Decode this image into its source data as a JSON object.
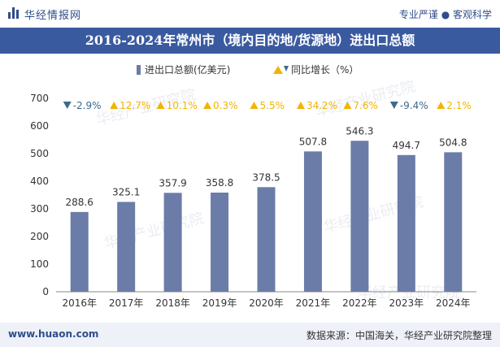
{
  "header": {
    "brand": "华经情报网",
    "tagline": "专业严谨 ● 客观科学"
  },
  "footer": {
    "site": "www.huaon.com",
    "source": "数据来源：中国海关，华经产业研究院整理"
  },
  "watermark": "华经产业研究院",
  "colors": {
    "bar": "#6b7ca8",
    "up": "#f2b400",
    "down": "#3d6a8c",
    "title_bg": "#3a5aa0"
  },
  "chart_data": {
    "type": "bar",
    "title": "2016-2024年常州市（境内目的地/货源地）进出口总额",
    "categories": [
      "2016年",
      "2017年",
      "2018年",
      "2019年",
      "2020年",
      "2021年",
      "2022年",
      "2023年",
      "2024年"
    ],
    "series": [
      {
        "name": "进出口总额(亿美元)",
        "values": [
          288.6,
          325.1,
          357.9,
          358.8,
          378.5,
          507.8,
          546.3,
          494.7,
          504.8
        ]
      },
      {
        "name": "同比增长（%）",
        "values": [
          -2.9,
          12.7,
          10.1,
          0.3,
          5.5,
          34.2,
          7.6,
          -9.4,
          2.1
        ]
      }
    ],
    "value_labels": [
      "288.6",
      "325.1",
      "357.9",
      "358.8",
      "378.5",
      "507.8",
      "546.3",
      "494.7",
      "504.8"
    ],
    "growth_labels": [
      "-2.9%",
      "12.7%",
      "10.1%",
      "0.3%",
      "5.5%",
      "34.2%",
      "7.6%",
      "-9.4%",
      "2.1%"
    ],
    "yticks": [
      "0",
      "100",
      "200",
      "300",
      "400",
      "500",
      "600",
      "700"
    ],
    "ylim": [
      0,
      700
    ],
    "legend_position": "top-center",
    "grid": false
  }
}
